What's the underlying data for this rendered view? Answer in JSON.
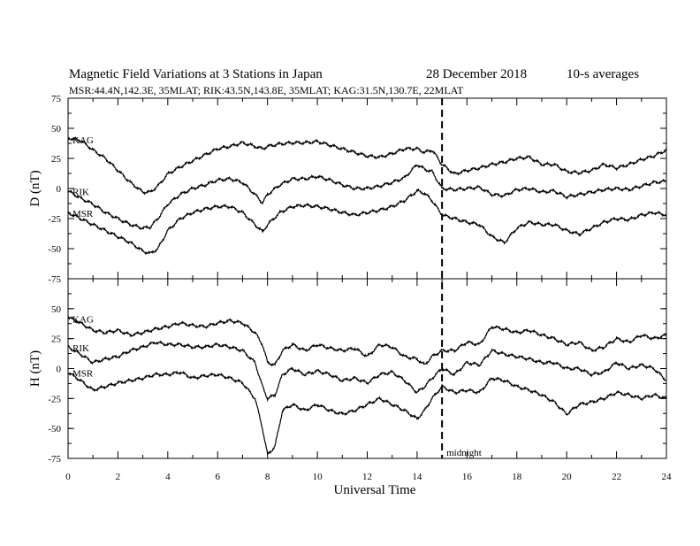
{
  "header": {
    "title": "Magnetic Field Variations at 3 Stations in Japan",
    "date": "28 December 2018",
    "averaging": "10-s averages",
    "stations": "MSR:44.4N,142.3E, 35MLAT;  RIK:43.5N,143.8E, 35MLAT;  KAG:31.5N,130.7E, 22MLAT"
  },
  "chart_data": {
    "type": "line",
    "xlabel": "Universal Time",
    "xlim": [
      0,
      24
    ],
    "xticks": [
      0,
      2,
      4,
      6,
      8,
      10,
      12,
      14,
      16,
      18,
      20,
      22,
      24
    ],
    "annotation": {
      "x": 15,
      "text": "midnight"
    },
    "panels": [
      {
        "id": "D",
        "ylabel": "D (nT)",
        "ylim": [
          -75,
          75
        ],
        "yticks": [
          75,
          50,
          25,
          0,
          -25,
          -50,
          -75
        ],
        "series": [
          {
            "name": "KAG",
            "x": [
              0,
              0.5,
              1,
              1.5,
              2,
              2.5,
              3,
              3.3,
              3.6,
              4,
              4.5,
              5,
              5.5,
              6,
              6.5,
              7,
              7.5,
              7.8,
              8,
              8.5,
              9,
              9.5,
              10,
              10.5,
              11,
              11.5,
              12,
              12.5,
              13,
              13.5,
              14,
              14.3,
              14.6,
              15,
              15.5,
              16,
              16.5,
              17,
              17.5,
              18,
              18.5,
              19,
              19.5,
              20,
              20.5,
              21,
              21.5,
              22,
              22.5,
              23,
              23.5,
              24
            ],
            "y": [
              42,
              40,
              32,
              25,
              15,
              5,
              -3,
              -3,
              2,
              12,
              18,
              23,
              28,
              33,
              35,
              38,
              35,
              33,
              35,
              37,
              38,
              38,
              39,
              36,
              33,
              30,
              27,
              26,
              29,
              33,
              33,
              30,
              32,
              20,
              12,
              15,
              17,
              20,
              22,
              25,
              26,
              20,
              20,
              14,
              13,
              15,
              20,
              17,
              20,
              24,
              27,
              32
            ]
          },
          {
            "name": "RIK",
            "x": [
              0,
              0.5,
              1,
              1.5,
              2,
              2.5,
              3,
              3.3,
              3.6,
              4,
              4.5,
              5,
              5.5,
              6,
              6.5,
              7,
              7.5,
              7.8,
              8,
              8.5,
              9,
              9.5,
              10,
              10.5,
              11,
              11.5,
              12,
              12.5,
              13,
              13.5,
              14,
              14.3,
              14.6,
              15,
              15.5,
              16,
              16.5,
              17,
              17.5,
              18,
              18.5,
              19,
              19.5,
              20,
              20.5,
              21,
              21.5,
              22,
              22.5,
              23,
              23.5,
              24
            ],
            "y": [
              -2,
              -8,
              -13,
              -20,
              -25,
              -30,
              -33,
              -32,
              -25,
              -13,
              -5,
              0,
              3,
              7,
              8,
              5,
              -5,
              -12,
              -5,
              3,
              8,
              8,
              10,
              7,
              3,
              0,
              0,
              2,
              5,
              9,
              20,
              16,
              14,
              0,
              -1,
              0,
              1,
              -5,
              -6,
              -1,
              0,
              -3,
              -2,
              -7,
              -5,
              -3,
              -1,
              0,
              -1,
              2,
              5,
              6
            ]
          },
          {
            "name": "MSR",
            "x": [
              0,
              0.5,
              1,
              1.5,
              2,
              2.5,
              3,
              3.3,
              3.6,
              4,
              4.5,
              5,
              5.5,
              6,
              6.5,
              7,
              7.5,
              7.8,
              8,
              8.5,
              9,
              9.5,
              10,
              10.5,
              11,
              11.5,
              12,
              12.5,
              13,
              13.5,
              14,
              14.3,
              14.6,
              15,
              15.5,
              16,
              16.5,
              17,
              17.5,
              18,
              18.5,
              19,
              19.5,
              20,
              20.5,
              21,
              21.5,
              22,
              22.5,
              23,
              23.5,
              24
            ],
            "y": [
              -20,
              -25,
              -30,
              -35,
              -40,
              -45,
              -52,
              -54,
              -50,
              -35,
              -25,
              -20,
              -17,
              -15,
              -15,
              -20,
              -30,
              -36,
              -30,
              -20,
              -15,
              -14,
              -15,
              -17,
              -20,
              -22,
              -20,
              -18,
              -15,
              -10,
              -2,
              -4,
              -10,
              -22,
              -25,
              -28,
              -30,
              -40,
              -45,
              -33,
              -28,
              -30,
              -30,
              -35,
              -38,
              -33,
              -28,
              -25,
              -26,
              -22,
              -20,
              -22
            ]
          }
        ]
      },
      {
        "id": "H",
        "ylabel": "H (nT)",
        "ylim": [
          -75,
          75
        ],
        "yticks": [
          75,
          50,
          25,
          0,
          -25,
          -50,
          -75
        ],
        "series": [
          {
            "name": "KAG",
            "x": [
              0,
              0.5,
              1,
              1.5,
              2,
              2.5,
              3,
              3.5,
              4,
              4.5,
              5,
              5.5,
              6,
              6.5,
              7,
              7.5,
              7.8,
              8,
              8.3,
              8.6,
              9,
              9.5,
              10,
              10.5,
              11,
              11.5,
              12,
              12.5,
              13,
              13.5,
              14,
              14.3,
              14.6,
              15,
              15.5,
              16,
              16.5,
              17,
              17.5,
              18,
              18.5,
              19,
              19.5,
              20,
              20.5,
              21,
              21.5,
              22,
              22.5,
              23,
              23.5,
              24
            ],
            "y": [
              43,
              38,
              32,
              30,
              32,
              28,
              30,
              33,
              35,
              38,
              36,
              35,
              38,
              40,
              38,
              30,
              20,
              5,
              3,
              15,
              20,
              15,
              20,
              17,
              15,
              17,
              10,
              20,
              18,
              10,
              8,
              3,
              10,
              15,
              15,
              22,
              20,
              35,
              33,
              30,
              32,
              28,
              25,
              20,
              22,
              15,
              18,
              25,
              22,
              28,
              25,
              28
            ]
          },
          {
            "name": "RIK",
            "x": [
              0,
              0.5,
              1,
              1.5,
              2,
              2.5,
              3,
              3.5,
              4,
              4.5,
              5,
              5.5,
              6,
              6.5,
              7,
              7.5,
              7.8,
              8,
              8.3,
              8.6,
              9,
              9.5,
              10,
              10.5,
              11,
              11.5,
              12,
              12.5,
              13,
              13.5,
              14,
              14.3,
              14.6,
              15,
              15.5,
              16,
              16.5,
              17,
              17.5,
              18,
              18.5,
              19,
              19.5,
              20,
              20.5,
              21,
              21.5,
              22,
              22.5,
              23,
              23.5,
              24
            ],
            "y": [
              18,
              12,
              5,
              8,
              10,
              15,
              18,
              22,
              20,
              20,
              18,
              18,
              20,
              18,
              15,
              5,
              -15,
              -25,
              -22,
              -5,
              0,
              -5,
              -2,
              -5,
              -10,
              -8,
              -12,
              -5,
              -3,
              -10,
              -20,
              -15,
              -8,
              0,
              -5,
              5,
              3,
              15,
              12,
              10,
              8,
              5,
              5,
              0,
              0,
              -5,
              -3,
              5,
              0,
              3,
              0,
              -10
            ]
          },
          {
            "name": "MSR",
            "x": [
              0,
              0.5,
              1,
              1.5,
              2,
              2.5,
              3,
              3.5,
              4,
              4.5,
              5,
              5.5,
              6,
              6.5,
              7,
              7.5,
              7.8,
              8,
              8.3,
              8.6,
              9,
              9.5,
              10,
              10.5,
              11,
              11.5,
              12,
              12.5,
              13,
              13.5,
              14,
              14.3,
              14.6,
              15,
              15.5,
              16,
              16.5,
              17,
              17.5,
              18,
              18.5,
              19,
              19.5,
              20,
              20.5,
              21,
              21.5,
              22,
              22.5,
              23,
              23.5,
              24
            ],
            "y": [
              -3,
              -10,
              -18,
              -15,
              -12,
              -10,
              -8,
              -5,
              -5,
              -3,
              -8,
              -6,
              -5,
              -8,
              -12,
              -25,
              -50,
              -72,
              -65,
              -35,
              -30,
              -35,
              -30,
              -35,
              -38,
              -35,
              -30,
              -25,
              -30,
              -35,
              -42,
              -35,
              -25,
              -15,
              -20,
              -18,
              -20,
              -8,
              -10,
              -15,
              -18,
              -22,
              -28,
              -38,
              -30,
              -28,
              -25,
              -20,
              -22,
              -25,
              -22,
              -25
            ]
          }
        ]
      }
    ]
  }
}
